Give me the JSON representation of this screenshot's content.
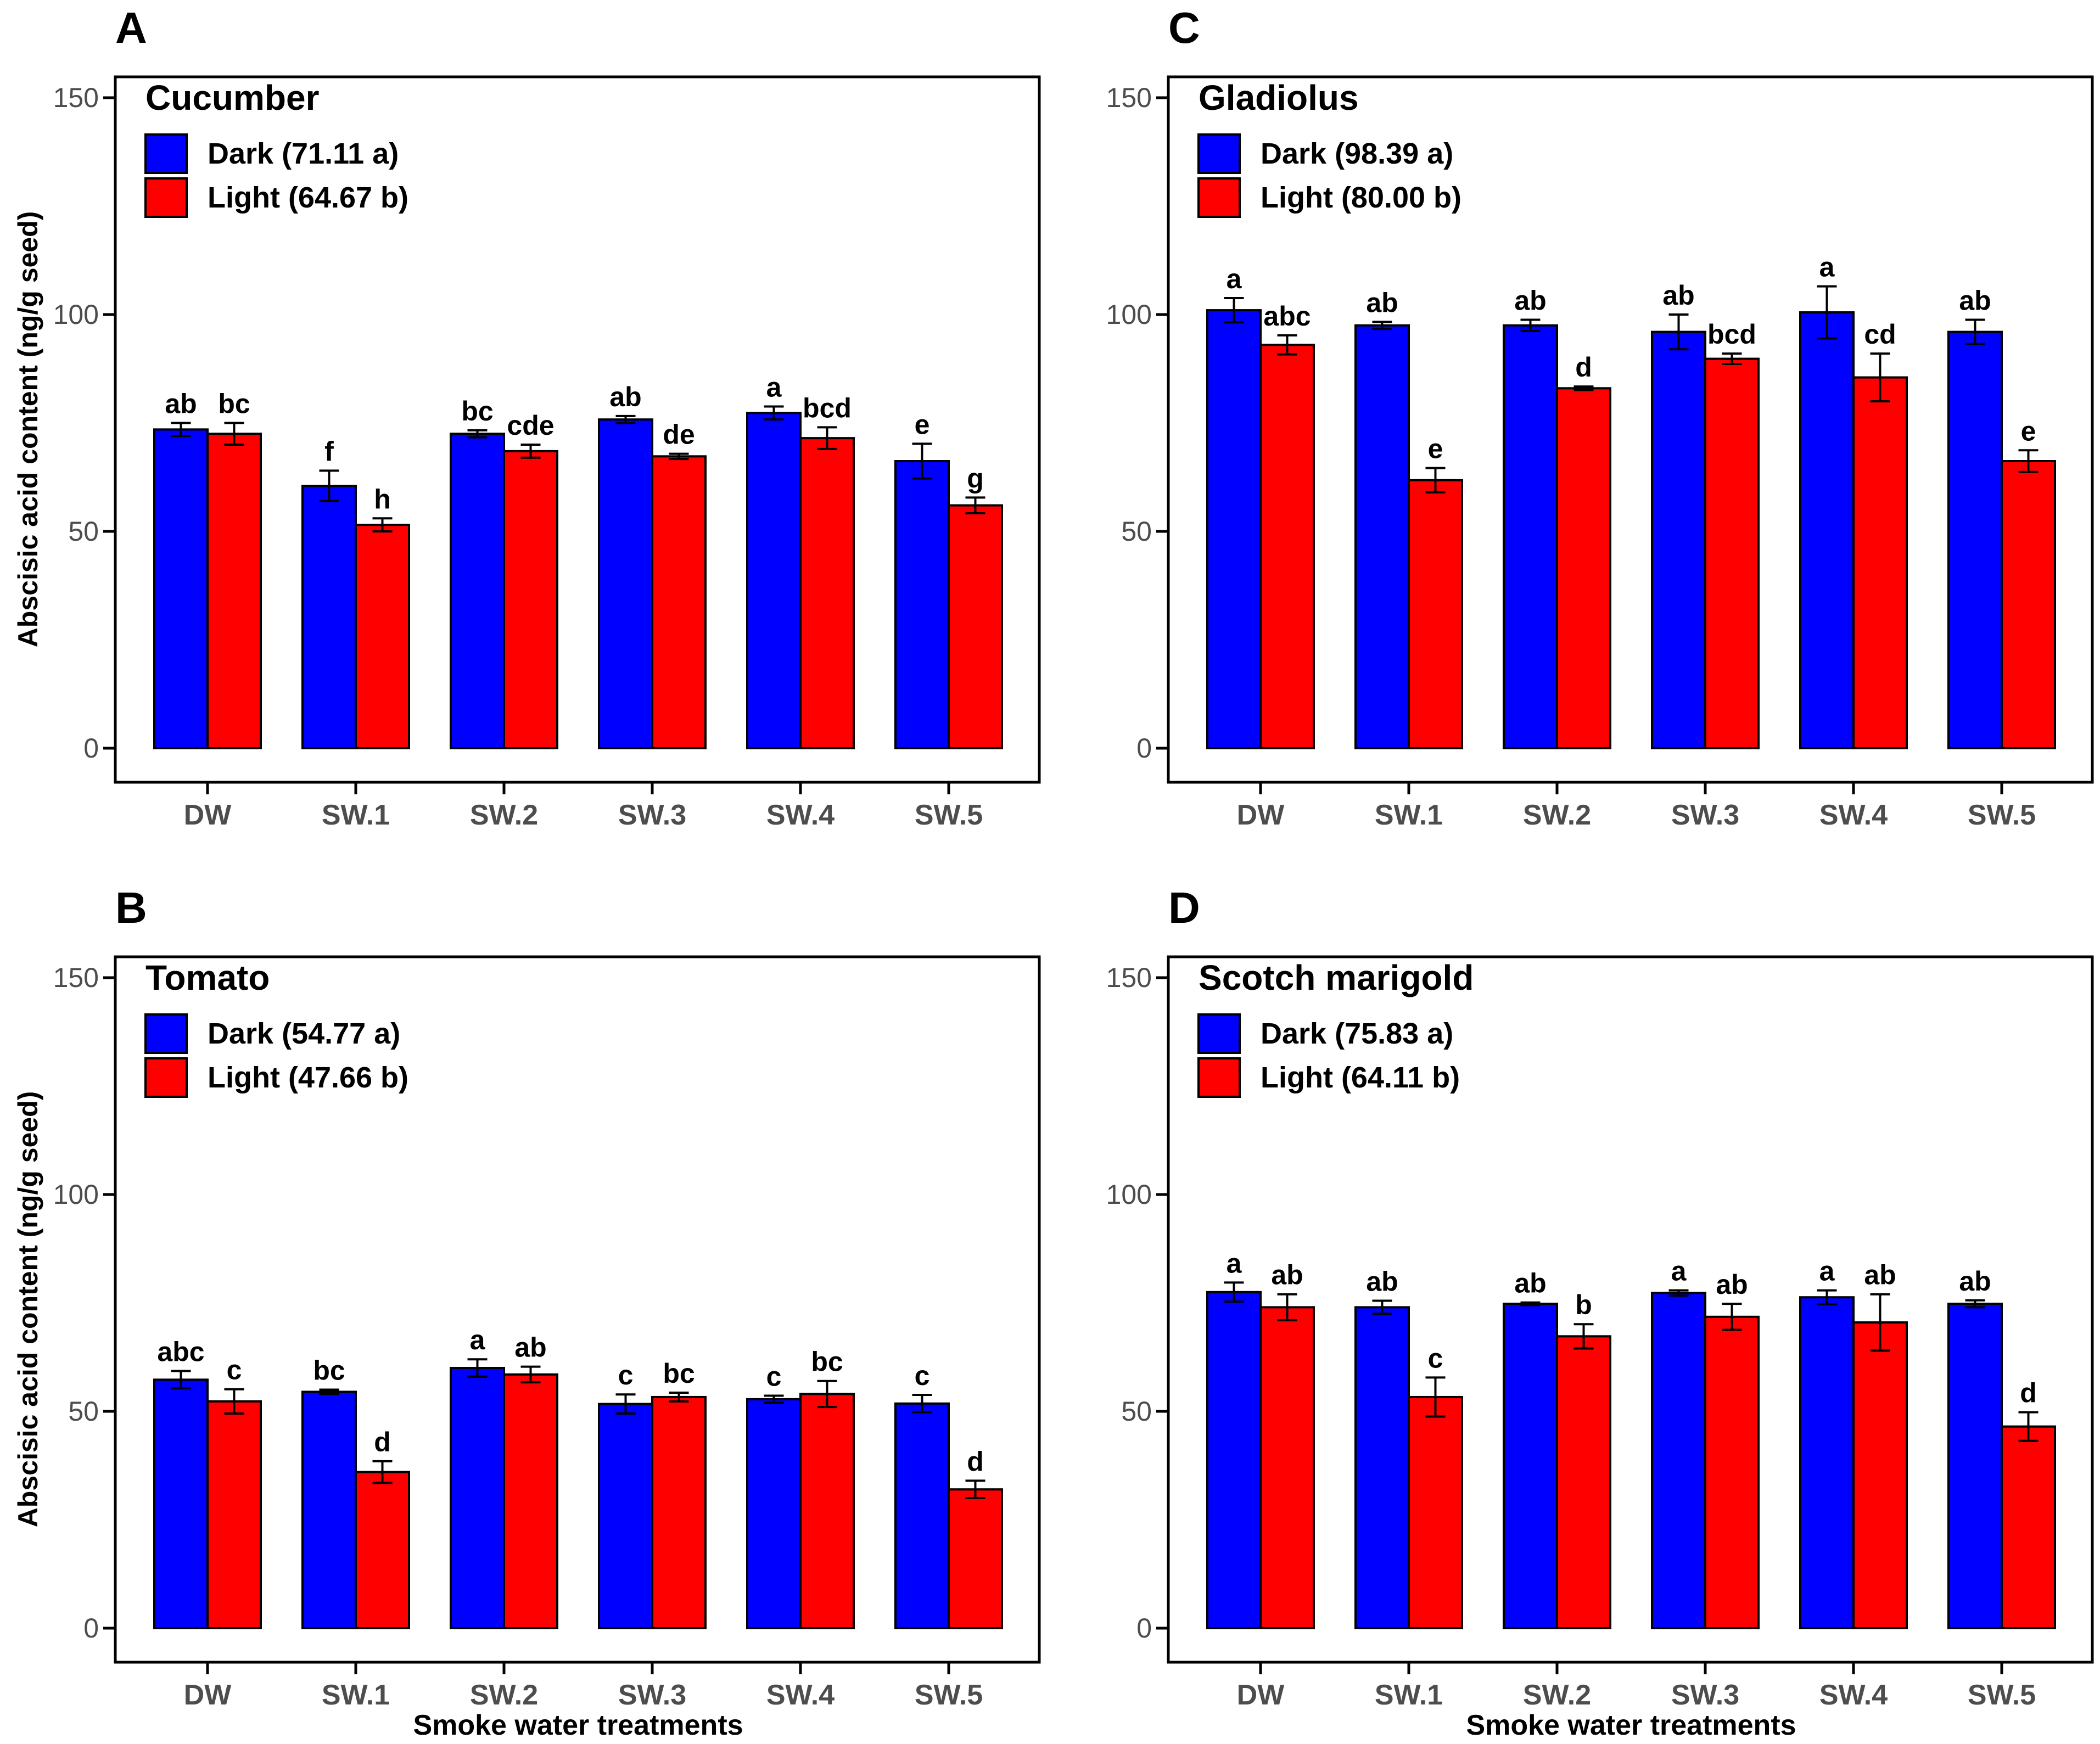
{
  "figure": {
    "y_axis_label": "Abscisic acid content (ng/g seed)",
    "x_axis_label": "Smoke water treatments"
  },
  "colors": {
    "dark": "#0000FF",
    "light": "#FF0000",
    "axis": "#000000",
    "tick_text": "#4D4D4D"
  },
  "chart_data": [
    {
      "panel": "A",
      "type": "bar",
      "title": "Cucumber",
      "categories": [
        "DW",
        "SW.1",
        "SW.2",
        "SW.3",
        "SW.4",
        "SW.5"
      ],
      "ylim": [
        0,
        150
      ],
      "yticks": [
        0,
        50,
        100,
        150
      ],
      "ylabel": "Abscisic acid content (ng/g seed)",
      "xlabel": "",
      "legend": [
        "Dark (71.11 a)",
        "Light (64.67 b)"
      ],
      "series": [
        {
          "name": "Dark",
          "color": "#0000FF",
          "values": [
            73.5,
            60.5,
            72.5,
            75.8,
            77.3,
            66.2
          ],
          "errors": [
            1.5,
            3.5,
            0.8,
            0.8,
            1.5,
            4
          ],
          "letters": [
            "ab",
            "f",
            "bc",
            "ab",
            "a",
            "e"
          ]
        },
        {
          "name": "Light",
          "color": "#FF0000",
          "values": [
            72.5,
            51.5,
            68.5,
            67.3,
            71.5,
            56
          ],
          "errors": [
            2.5,
            1.5,
            1.5,
            0.6,
            2.5,
            1.8
          ],
          "letters": [
            "bc",
            "h",
            "cde",
            "de",
            "bcd",
            "g"
          ]
        }
      ]
    },
    {
      "panel": "B",
      "type": "bar",
      "title": "Tomato",
      "categories": [
        "DW",
        "SW.1",
        "SW.2",
        "SW.3",
        "SW.4",
        "SW.5"
      ],
      "ylim": [
        0,
        150
      ],
      "yticks": [
        0,
        50,
        100,
        150
      ],
      "ylabel": "Abscisic acid content (ng/g seed)",
      "xlabel": "Smoke water treatments",
      "legend": [
        "Dark (54.77 a)",
        "Light (47.66 b)"
      ],
      "series": [
        {
          "name": "Dark",
          "color": "#0000FF",
          "values": [
            57.3,
            54.5,
            60,
            51.7,
            52.8,
            51.8
          ],
          "errors": [
            2,
            0.5,
            2,
            2.2,
            0.8,
            2
          ],
          "letters": [
            "abc",
            "bc",
            "a",
            "c",
            "c",
            "c"
          ]
        },
        {
          "name": "Light",
          "color": "#FF0000",
          "values": [
            52.3,
            36,
            58.5,
            53.3,
            54,
            32
          ],
          "errors": [
            2.8,
            2.5,
            1.8,
            1,
            3,
            2
          ],
          "letters": [
            "c",
            "d",
            "ab",
            "bc",
            "bc",
            "d"
          ]
        }
      ]
    },
    {
      "panel": "C",
      "type": "bar",
      "title": "Gladiolus",
      "categories": [
        "DW",
        "SW.1",
        "SW.2",
        "SW.3",
        "SW.4",
        "SW.5"
      ],
      "ylim": [
        0,
        150
      ],
      "yticks": [
        0,
        50,
        100,
        150
      ],
      "ylabel": "",
      "xlabel": "",
      "legend": [
        "Dark (98.39 a)",
        "Light (80.00 b)"
      ],
      "series": [
        {
          "name": "Dark",
          "color": "#0000FF",
          "values": [
            101,
            97.5,
            97.5,
            96,
            100.5,
            96
          ],
          "errors": [
            2.8,
            0.8,
            1.3,
            4,
            6,
            2.8
          ],
          "letters": [
            "a",
            "ab",
            "ab",
            "ab",
            "a",
            "ab"
          ]
        },
        {
          "name": "Light",
          "color": "#FF0000",
          "values": [
            93,
            61.8,
            83,
            89.8,
            85.5,
            66.2
          ],
          "errors": [
            2.2,
            2.8,
            0.4,
            1.2,
            5.5,
            2.5
          ],
          "letters": [
            "abc",
            "e",
            "d",
            "bcd",
            "cd",
            "e"
          ]
        }
      ]
    },
    {
      "panel": "D",
      "type": "bar",
      "title": "Scotch marigold",
      "categories": [
        "DW",
        "SW.1",
        "SW.2",
        "SW.3",
        "SW.4",
        "SW.5"
      ],
      "ylim": [
        0,
        150
      ],
      "yticks": [
        0,
        50,
        100,
        150
      ],
      "ylabel": "",
      "xlabel": "Smoke water treatments",
      "legend": [
        "Dark (75.83 a)",
        "Light (64.11 b)"
      ],
      "series": [
        {
          "name": "Dark",
          "color": "#0000FF",
          "values": [
            77.5,
            74,
            74.8,
            77.3,
            76.3,
            74.8
          ],
          "errors": [
            2.2,
            1.5,
            0.3,
            0.6,
            1.6,
            0.8
          ],
          "letters": [
            "a",
            "ab",
            "ab",
            "a",
            "a",
            "ab"
          ]
        },
        {
          "name": "Light",
          "color": "#FF0000",
          "values": [
            74,
            53.3,
            67.3,
            71.8,
            70.5,
            46.5
          ],
          "errors": [
            3,
            4.5,
            2.8,
            3,
            6.5,
            3.3
          ],
          "letters": [
            "ab",
            "c",
            "b",
            "ab",
            "ab",
            "d"
          ]
        }
      ]
    }
  ]
}
